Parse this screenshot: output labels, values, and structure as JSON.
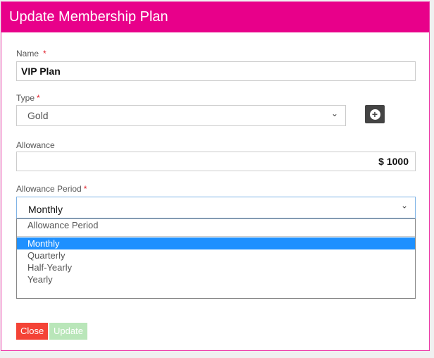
{
  "dialog": {
    "title": "Update Membership Plan"
  },
  "name": {
    "label": "Name",
    "required": "*",
    "value": "VIP Plan"
  },
  "type": {
    "label": "Type",
    "required": "*",
    "value": "Gold",
    "add_icon": "plus-circle-icon"
  },
  "allowance": {
    "label": "Allowance",
    "value": "$ 1000"
  },
  "period": {
    "label": "Allowance Period",
    "required": "*",
    "value": "Monthly",
    "options": [
      "Allowance Period",
      "Monthly",
      "Quarterly",
      "Half-Yearly",
      "Yearly"
    ],
    "selected": "Monthly"
  },
  "buttons": {
    "close": "Close",
    "update": "Update"
  },
  "colors": {
    "header": "#e8008a",
    "close": "#f44336",
    "update": "#b9e6b9",
    "selected": "#1e90ff"
  }
}
